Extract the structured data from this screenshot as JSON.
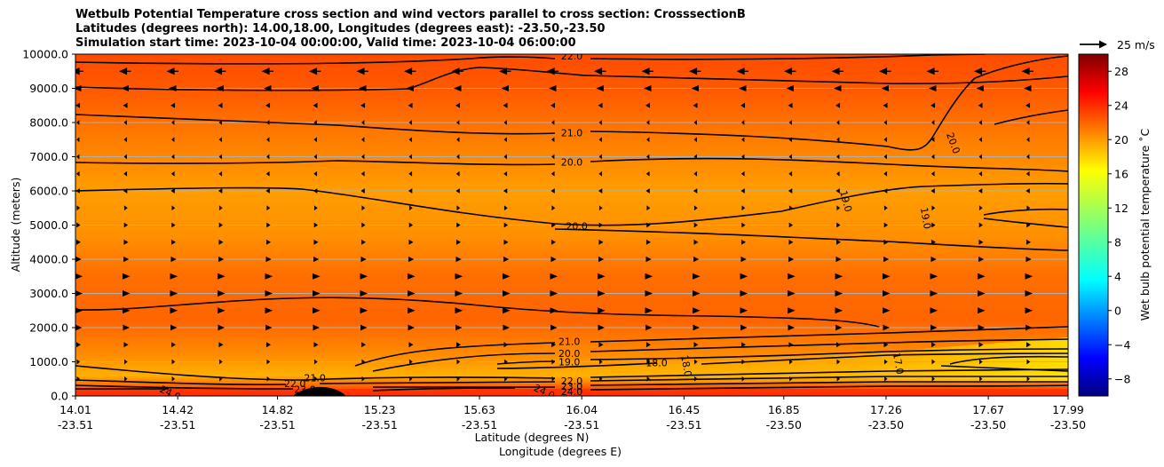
{
  "titles": [
    "Wetbulb Potential Temperature cross section and wind vectors parallel to cross section: CrosssectionB",
    "Latitudes (degrees north): 14.00,18.00, Longitudes (degrees east): -23.50,-23.50",
    "Simulation start time: 2023-10-04 00:00:00, Valid time: 2023-10-04 06:00:00"
  ],
  "chart_data": {
    "type": "contour",
    "ylabel": "Altitude (meters)",
    "xlabel_1": "Latitude (degrees N)",
    "xlabel_2": "Longitude (degrees E)",
    "ylim": [
      0,
      10000
    ],
    "yticks": [
      "0.0",
      "1000.0",
      "2000.0",
      "3000.0",
      "4000.0",
      "5000.0",
      "6000.0",
      "7000.0",
      "8000.0",
      "9000.0",
      "10000.0"
    ],
    "xticks": [
      {
        "lat": "14.01",
        "lon": "-23.51"
      },
      {
        "lat": "14.42",
        "lon": "-23.51"
      },
      {
        "lat": "14.82",
        "lon": "-23.51"
      },
      {
        "lat": "15.23",
        "lon": "-23.51"
      },
      {
        "lat": "15.63",
        "lon": "-23.51"
      },
      {
        "lat": "16.04",
        "lon": "-23.51"
      },
      {
        "lat": "16.45",
        "lon": "-23.51"
      },
      {
        "lat": "16.85",
        "lon": "-23.50"
      },
      {
        "lat": "17.26",
        "lon": "-23.50"
      },
      {
        "lat": "17.67",
        "lon": "-23.50"
      },
      {
        "lat": "17.99",
        "lon": "-23.50"
      }
    ],
    "grid": "horizontal",
    "colorbar": {
      "label": "Wet bulb potential temperature ˚C",
      "colormap": "jet",
      "range": [
        -10,
        30
      ],
      "ticks": [
        "28",
        "24",
        "20",
        "16",
        "12",
        "8",
        "4",
        "0",
        "−4",
        "−8"
      ]
    },
    "quiver_key": {
      "label": "25 m/s",
      "speed": 25
    },
    "contour_labels": [
      {
        "text": "22.0",
        "lat": 16.0,
        "alt": 9950
      },
      {
        "text": "21.0",
        "lat": 16.0,
        "alt": 7700
      },
      {
        "text": "20.0",
        "lat": 16.0,
        "alt": 6850
      },
      {
        "text": "20.0",
        "lat": 17.53,
        "alt": 7400,
        "rotate": 70
      },
      {
        "text": "19.0",
        "lat": 17.1,
        "alt": 5700,
        "rotate": 75
      },
      {
        "text": "19.0",
        "lat": 17.42,
        "alt": 5200,
        "rotate": 80
      },
      {
        "text": "20.0",
        "lat": 16.02,
        "alt": 4970
      },
      {
        "text": "21.0",
        "lat": 15.99,
        "alt": 1600
      },
      {
        "text": "20.0",
        "lat": 15.99,
        "alt": 1250
      },
      {
        "text": "19.0",
        "lat": 15.99,
        "alt": 1000
      },
      {
        "text": "18.0",
        "lat": 16.34,
        "alt": 980
      },
      {
        "text": "18.0",
        "lat": 16.46,
        "alt": 880,
        "rotate": 80
      },
      {
        "text": "17.0",
        "lat": 17.31,
        "alt": 950,
        "rotate": 80
      },
      {
        "text": "21.0",
        "lat": 14.97,
        "alt": 530
      },
      {
        "text": "22.0",
        "lat": 14.89,
        "alt": 370
      },
      {
        "text": "23.0",
        "lat": 14.93,
        "alt": 200
      },
      {
        "text": "24.0",
        "lat": 14.39,
        "alt": 90,
        "rotate": 25
      },
      {
        "text": "24.0",
        "lat": 15.89,
        "alt": 130,
        "rotate": 25
      },
      {
        "text": "22.0",
        "lat": 16.0,
        "alt": 440
      },
      {
        "text": "23.0",
        "lat": 16.0,
        "alt": 280
      },
      {
        "text": "24.0",
        "lat": 16.0,
        "alt": 130
      }
    ],
    "contour_levels": [
      17,
      18,
      19,
      20,
      21,
      22,
      23,
      24
    ],
    "wind_vectors": {
      "levels_m": [
        9500,
        9000,
        8500,
        8000,
        7500,
        7000,
        6500,
        6000,
        5500,
        5000,
        4500,
        4000,
        3500,
        3000,
        2500,
        2000,
        1500,
        1000,
        500
      ],
      "u_ms": [
        -10,
        -6,
        -3,
        -1.5,
        -1,
        -1,
        -2,
        -2.5,
        2,
        2.5,
        3,
        4,
        6,
        6,
        6,
        5,
        3,
        2,
        1
      ]
    }
  }
}
